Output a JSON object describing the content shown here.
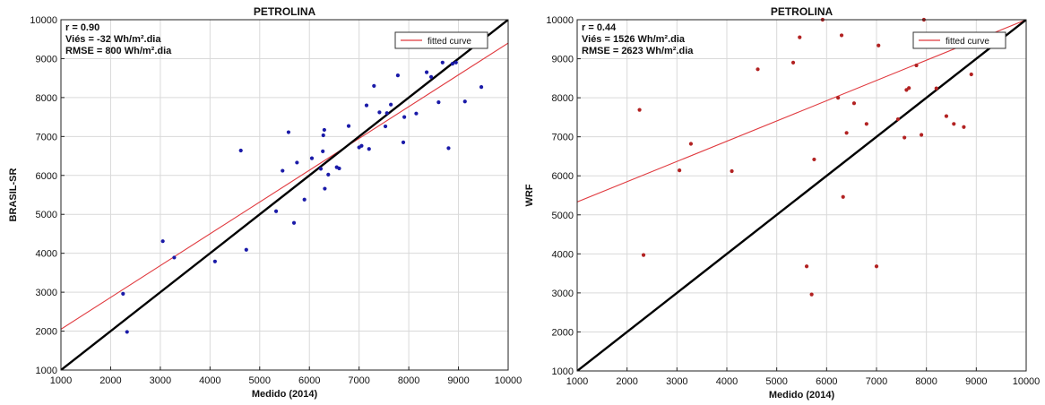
{
  "chart_data": [
    {
      "type": "scatter",
      "title": "PETROLINA",
      "xlabel": "Medido (2014)",
      "ylabel": "BRASIL-SR",
      "xlim": [
        1000,
        10000
      ],
      "ylim": [
        1000,
        10000
      ],
      "xticks": [
        1000,
        2000,
        3000,
        4000,
        5000,
        6000,
        7000,
        8000,
        9000,
        10000
      ],
      "yticks": [
        1000,
        2000,
        3000,
        4000,
        5000,
        6000,
        7000,
        8000,
        9000,
        10000
      ],
      "grid": true,
      "legend_position": "top-right",
      "annotations": [
        "r = 0.90",
        "Viés = -32 Wh/m².dia",
        "RMSE = 800 Wh/m².dia"
      ],
      "point_color": "#1a1aa8",
      "fit_line": {
        "name": "fitted curve",
        "color": "#e0393e",
        "y_at_xmin": 2050,
        "y_at_xmax": 9400
      },
      "identity_line": {
        "color": "#000000"
      },
      "series": [
        {
          "x": [
            2250,
            2330,
            3050,
            3280,
            4100,
            4620,
            4730,
            5330,
            5460,
            5580,
            5690,
            5750,
            5900,
            6050,
            6230,
            6270,
            6280,
            6300,
            6310,
            6380,
            6550,
            6600,
            6790,
            7000,
            7050,
            7150,
            7200,
            7300,
            7410,
            7530,
            7560,
            7640,
            7780,
            7890,
            7910,
            8150,
            8360,
            8450,
            8600,
            8680,
            8800,
            8880,
            8950,
            9130,
            9460
          ],
          "y": [
            2960,
            1980,
            4310,
            3890,
            3790,
            6640,
            4090,
            5080,
            6120,
            7110,
            4780,
            6330,
            5380,
            6440,
            6170,
            6620,
            7030,
            7170,
            5660,
            6020,
            6210,
            6180,
            7270,
            6720,
            6760,
            7800,
            6680,
            8300,
            7620,
            7260,
            7600,
            7820,
            8570,
            6850,
            7500,
            7590,
            8650,
            8530,
            7880,
            8900,
            6700,
            8870,
            8900,
            7900,
            8270
          ]
        }
      ]
    },
    {
      "type": "scatter",
      "title": "PETROLINA",
      "xlabel": "Medido (2014)",
      "ylabel": "WRF",
      "xlim": [
        1000,
        10000
      ],
      "ylim": [
        1000,
        10000
      ],
      "xticks": [
        1000,
        2000,
        3000,
        4000,
        5000,
        6000,
        7000,
        8000,
        9000,
        10000
      ],
      "yticks": [
        1000,
        2000,
        3000,
        4000,
        5000,
        6000,
        7000,
        8000,
        9000,
        10000
      ],
      "grid": true,
      "legend_position": "top-right",
      "annotations": [
        "r = 0.44",
        "Viés = 1526 Wh/m².dia",
        "RMSE = 2623 Wh/m².dia"
      ],
      "point_color": "#b22222",
      "fit_line": {
        "name": "fitted curve",
        "color": "#e0393e",
        "y_at_xmin": 5330,
        "y_at_xmax": 10000
      },
      "identity_line": {
        "color": "#000000"
      },
      "series": [
        {
          "x": [
            2250,
            2330,
            3050,
            3280,
            4100,
            4620,
            5330,
            5460,
            5600,
            5700,
            5750,
            5920,
            6230,
            6300,
            6330,
            6400,
            6550,
            6800,
            7000,
            7040,
            7560,
            7600,
            7650,
            7800,
            7900,
            7950,
            8200,
            8400,
            8550,
            8750,
            8900,
            7430
          ],
          "y": [
            7690,
            3970,
            6140,
            6820,
            6120,
            8730,
            8900,
            9550,
            3680,
            2960,
            6420,
            10000,
            8000,
            9600,
            5460,
            7100,
            7860,
            7330,
            3680,
            9340,
            6980,
            8200,
            8250,
            8830,
            7050,
            10000,
            8240,
            7530,
            7330,
            7250,
            8600,
            7450
          ]
        }
      ]
    }
  ]
}
